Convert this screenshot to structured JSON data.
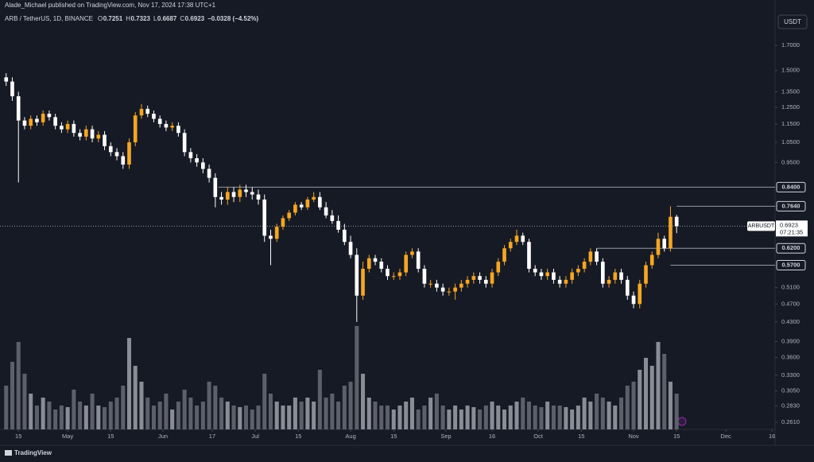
{
  "header": {
    "publisher": "Alade_Michael published on TradingView.com, Nov 17, 2024 17:38 UTC+1",
    "symbol": "ARB / TetherUS, 1D, BINANCE",
    "ohlc": [
      {
        "key": "O",
        "value": "0.7251"
      },
      {
        "key": "H",
        "value": "0.7323"
      },
      {
        "key": "L",
        "value": "0.6687"
      },
      {
        "key": "C",
        "value": "0.6923"
      }
    ],
    "change": "−0.0328 (−4.52%)",
    "currency_button": "USDT"
  },
  "footer": {
    "brand": "TradingView"
  },
  "chart_data": {
    "type": "candlestick",
    "log_scale": true,
    "grid": false,
    "up_color": "#f5a623",
    "down_color": "#ffffff",
    "volume_up_color": "#8a8d96",
    "volume_down_color": "#5d606b",
    "xlim": [
      -1,
      125
    ],
    "ylim": [
      0.252,
      2.13
    ],
    "xticks": [
      {
        "value": 2,
        "label": "15"
      },
      {
        "value": 10,
        "label": "May"
      },
      {
        "value": 17,
        "label": "15"
      },
      {
        "value": 25.5,
        "label": "Jun"
      },
      {
        "value": 33.5,
        "label": "17"
      },
      {
        "value": 40.5,
        "label": "Jul"
      },
      {
        "value": 47.5,
        "label": "15"
      },
      {
        "value": 56,
        "label": "Aug"
      },
      {
        "value": 63,
        "label": "15"
      },
      {
        "value": 71.5,
        "label": "Sep"
      },
      {
        "value": 79,
        "label": "16"
      },
      {
        "value": 86.5,
        "label": "Oct"
      },
      {
        "value": 93.5,
        "label": "15"
      },
      {
        "value": 102,
        "label": "Nov"
      },
      {
        "value": 109,
        "label": "15"
      },
      {
        "value": 117,
        "label": "Dec"
      },
      {
        "value": 124.5,
        "label": "16"
      }
    ],
    "yticks": [
      {
        "value": 1.7,
        "label": "1.7000"
      },
      {
        "value": 1.5,
        "label": "1.5000"
      },
      {
        "value": 1.35,
        "label": "1.3500"
      },
      {
        "value": 1.25,
        "label": "1.2500"
      },
      {
        "value": 1.15,
        "label": "1.1500"
      },
      {
        "value": 1.05,
        "label": "1.0500"
      },
      {
        "value": 0.95,
        "label": "0.9500"
      },
      {
        "value": 0.51,
        "label": "0.5100"
      },
      {
        "value": 0.47,
        "label": "0.4700"
      },
      {
        "value": 0.43,
        "label": "0.4300"
      },
      {
        "value": 0.39,
        "label": "0.3900"
      },
      {
        "value": 0.36,
        "label": "0.3600"
      },
      {
        "value": 0.33,
        "label": "0.3300"
      },
      {
        "value": 0.305,
        "label": "0.3050"
      },
      {
        "value": 0.283,
        "label": "0.2830"
      },
      {
        "value": 0.261,
        "label": "0.2610"
      }
    ],
    "levels": [
      {
        "value": 0.84,
        "label": "0.8400",
        "from": 34.5
      },
      {
        "value": 0.764,
        "label": "0.7640",
        "from": 109
      },
      {
        "value": 0.62,
        "label": "0.6200",
        "from": 96
      },
      {
        "value": 0.57,
        "label": "0.5700",
        "from": 108
      }
    ],
    "last_price": 0.6923,
    "symbol_label": "ARBUSDT",
    "countdown": "07:21:35",
    "open": [
      1.45,
      1.42,
      1.32,
      1.17,
      1.14,
      1.18,
      1.16,
      1.21,
      1.19,
      1.14,
      1.12,
      1.15,
      1.1,
      1.08,
      1.12,
      1.07,
      1.09,
      1.03,
      1.0,
      0.98,
      0.94,
      1.05,
      1.2,
      1.24,
      1.21,
      1.18,
      1.15,
      1.13,
      1.14,
      1.1,
      1.0,
      0.97,
      0.95,
      0.92,
      0.88,
      0.8,
      0.79,
      0.82,
      0.8,
      0.83,
      0.82,
      0.81,
      0.79,
      0.66,
      0.65,
      0.69,
      0.72,
      0.74,
      0.77,
      0.76,
      0.79,
      0.8,
      0.76,
      0.73,
      0.71,
      0.68,
      0.64,
      0.6,
      0.49,
      0.56,
      0.59,
      0.58,
      0.56,
      0.54,
      0.54,
      0.55,
      0.6,
      0.61,
      0.56,
      0.52,
      0.52,
      0.51,
      0.5,
      0.5,
      0.51,
      0.52,
      0.53,
      0.54,
      0.53,
      0.52,
      0.55,
      0.58,
      0.62,
      0.64,
      0.66,
      0.64,
      0.56,
      0.55,
      0.54,
      0.55,
      0.53,
      0.52,
      0.53,
      0.55,
      0.56,
      0.58,
      0.61,
      0.58,
      0.52,
      0.53,
      0.55,
      0.53,
      0.49,
      0.47,
      0.52,
      0.57,
      0.6,
      0.65,
      0.62,
      0.7251
    ],
    "high": [
      1.48,
      1.45,
      1.35,
      1.19,
      1.2,
      1.2,
      1.23,
      1.23,
      1.21,
      1.16,
      1.17,
      1.17,
      1.12,
      1.14,
      1.14,
      1.11,
      1.11,
      1.05,
      1.02,
      1.0,
      1.07,
      1.22,
      1.27,
      1.26,
      1.23,
      1.2,
      1.17,
      1.16,
      1.16,
      1.12,
      1.02,
      0.99,
      0.97,
      0.94,
      0.9,
      0.82,
      0.84,
      0.84,
      0.85,
      0.85,
      0.84,
      0.83,
      0.81,
      0.68,
      0.7,
      0.73,
      0.75,
      0.78,
      0.78,
      0.8,
      0.82,
      0.82,
      0.78,
      0.75,
      0.73,
      0.7,
      0.66,
      0.62,
      0.58,
      0.6,
      0.6,
      0.59,
      0.57,
      0.55,
      0.56,
      0.61,
      0.62,
      0.62,
      0.57,
      0.53,
      0.53,
      0.52,
      0.51,
      0.52,
      0.53,
      0.54,
      0.55,
      0.55,
      0.54,
      0.56,
      0.59,
      0.63,
      0.65,
      0.68,
      0.67,
      0.65,
      0.57,
      0.56,
      0.56,
      0.56,
      0.54,
      0.54,
      0.56,
      0.57,
      0.59,
      0.62,
      0.62,
      0.59,
      0.54,
      0.56,
      0.56,
      0.54,
      0.5,
      0.53,
      0.58,
      0.61,
      0.67,
      0.66,
      0.764,
      0.7323
    ],
    "low": [
      1.39,
      1.29,
      0.86,
      1.12,
      1.12,
      1.14,
      1.14,
      1.17,
      1.12,
      1.1,
      1.1,
      1.08,
      1.06,
      1.06,
      1.05,
      1.05,
      1.01,
      0.98,
      0.96,
      0.92,
      0.92,
      1.03,
      1.18,
      1.19,
      1.16,
      1.13,
      1.11,
      1.11,
      1.08,
      0.98,
      0.95,
      0.93,
      0.9,
      0.86,
      0.76,
      0.77,
      0.77,
      0.78,
      0.78,
      0.8,
      0.79,
      0.77,
      0.64,
      0.57,
      0.64,
      0.68,
      0.71,
      0.73,
      0.75,
      0.75,
      0.78,
      0.75,
      0.72,
      0.7,
      0.67,
      0.63,
      0.59,
      0.43,
      0.48,
      0.55,
      0.57,
      0.55,
      0.53,
      0.53,
      0.53,
      0.54,
      0.59,
      0.55,
      0.51,
      0.51,
      0.5,
      0.49,
      0.49,
      0.48,
      0.5,
      0.51,
      0.52,
      0.52,
      0.51,
      0.51,
      0.54,
      0.57,
      0.61,
      0.63,
      0.63,
      0.55,
      0.54,
      0.53,
      0.53,
      0.52,
      0.51,
      0.51,
      0.52,
      0.54,
      0.55,
      0.57,
      0.57,
      0.51,
      0.51,
      0.52,
      0.52,
      0.48,
      0.46,
      0.46,
      0.51,
      0.56,
      0.59,
      0.61,
      0.61,
      0.6687
    ],
    "close": [
      1.42,
      1.32,
      1.17,
      1.14,
      1.18,
      1.16,
      1.21,
      1.19,
      1.14,
      1.12,
      1.15,
      1.1,
      1.08,
      1.12,
      1.07,
      1.09,
      1.03,
      1.0,
      0.98,
      0.94,
      1.05,
      1.2,
      1.24,
      1.21,
      1.18,
      1.15,
      1.13,
      1.14,
      1.1,
      1.0,
      0.97,
      0.95,
      0.92,
      0.88,
      0.8,
      0.79,
      0.82,
      0.8,
      0.83,
      0.82,
      0.81,
      0.79,
      0.66,
      0.65,
      0.69,
      0.72,
      0.74,
      0.77,
      0.76,
      0.79,
      0.8,
      0.76,
      0.73,
      0.71,
      0.68,
      0.64,
      0.6,
      0.49,
      0.56,
      0.59,
      0.58,
      0.56,
      0.54,
      0.54,
      0.55,
      0.6,
      0.61,
      0.56,
      0.52,
      0.52,
      0.51,
      0.5,
      0.5,
      0.51,
      0.52,
      0.53,
      0.54,
      0.53,
      0.52,
      0.55,
      0.58,
      0.62,
      0.64,
      0.66,
      0.64,
      0.56,
      0.55,
      0.54,
      0.55,
      0.53,
      0.52,
      0.53,
      0.55,
      0.56,
      0.58,
      0.61,
      0.58,
      0.52,
      0.53,
      0.55,
      0.53,
      0.49,
      0.47,
      0.52,
      0.57,
      0.6,
      0.65,
      0.62,
      0.7251,
      0.6923
    ],
    "volume": [
      55,
      85,
      110,
      70,
      45,
      30,
      40,
      35,
      25,
      30,
      28,
      50,
      35,
      30,
      45,
      30,
      28,
      35,
      40,
      55,
      115,
      80,
      60,
      40,
      30,
      35,
      45,
      25,
      35,
      50,
      40,
      30,
      35,
      60,
      55,
      40,
      35,
      30,
      28,
      30,
      25,
      30,
      70,
      45,
      35,
      30,
      30,
      40,
      35,
      40,
      35,
      75,
      40,
      45,
      35,
      55,
      60,
      130,
      70,
      40,
      35,
      30,
      30,
      25,
      30,
      35,
      40,
      25,
      30,
      40,
      45,
      30,
      25,
      30,
      25,
      30,
      28,
      25,
      30,
      35,
      30,
      25,
      30,
      35,
      40,
      35,
      30,
      28,
      35,
      30,
      30,
      28,
      25,
      30,
      40,
      35,
      45,
      40,
      35,
      30,
      40,
      55,
      60,
      75,
      90,
      80,
      110,
      95,
      60,
      45
    ]
  }
}
